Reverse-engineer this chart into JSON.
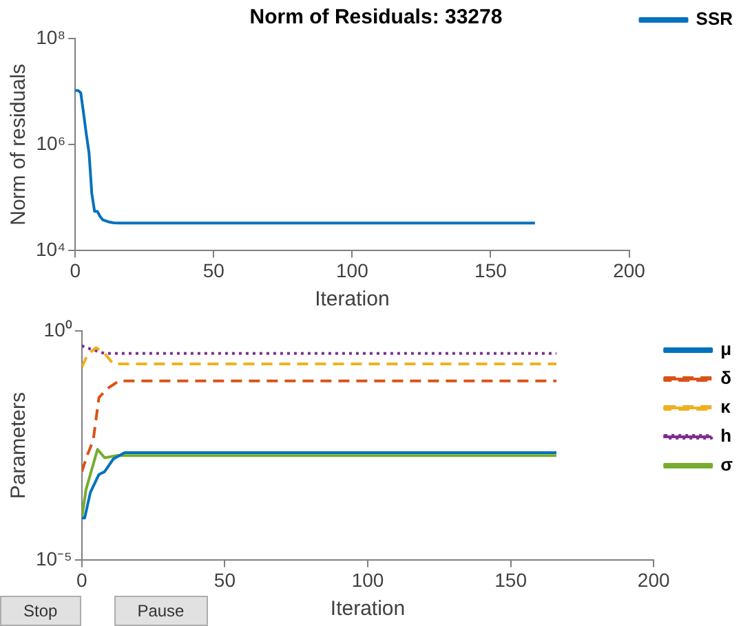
{
  "chart_data": [
    {
      "type": "line",
      "title": "Norm of Residuals: 33278",
      "xlabel": "Iteration",
      "ylabel": "Norm of residuals",
      "log": "y",
      "legend": "top right",
      "marker": "none",
      "xlim": [
        0,
        200
      ],
      "xticks": [
        0,
        50,
        100,
        150,
        200
      ],
      "ylim": [
        10000,
        100000000
      ],
      "yticks": [
        {
          "value": 10000,
          "label": "10⁴"
        },
        {
          "value": 1000000,
          "label": "10⁶"
        },
        {
          "value": 100000000,
          "label": "10⁸"
        }
      ],
      "series": [
        {
          "name": "SSR",
          "color": "#0072bd",
          "line_style": "solid",
          "x": [
            0,
            1,
            2,
            3,
            4,
            5,
            6,
            7,
            8,
            9,
            10,
            12,
            14,
            16,
            166
          ],
          "values": [
            10500000,
            10500000,
            9500000,
            4000000,
            1600000,
            700000,
            120000,
            55000,
            55000,
            44000,
            38000,
            35000,
            33500,
            33278,
            33278
          ]
        }
      ]
    },
    {
      "type": "line",
      "xlabel": "Iteration",
      "ylabel": "Parameters",
      "log": "y",
      "legend": "top right",
      "marker": "none",
      "xlim": [
        0,
        200
      ],
      "xticks": [
        0,
        50,
        100,
        150,
        200
      ],
      "ylim": [
        1e-05,
        1
      ],
      "yticks": [
        {
          "value": 1e-05,
          "label": "10⁻⁵"
        },
        {
          "value": 1,
          "label": "10⁰"
        }
      ],
      "annotations": [
        "Stop",
        "Pause"
      ],
      "series": [
        {
          "name": "μ",
          "color": "#0072bd",
          "line_style": "solid",
          "x": [
            0,
            1,
            3,
            6,
            8,
            11,
            15,
            166
          ],
          "values": [
            8.3e-05,
            8.3e-05,
            0.0003,
            0.00074,
            0.00085,
            0.0016,
            0.0022,
            0.0022
          ]
        },
        {
          "name": "δ",
          "color": "#d95319",
          "line_style": "dashed",
          "x": [
            0,
            2,
            4,
            6,
            9,
            13,
            166
          ],
          "values": [
            0.00085,
            0.002,
            0.0041,
            0.035,
            0.055,
            0.081,
            0.081
          ]
        },
        {
          "name": "κ",
          "color": "#edb120",
          "line_style": "dashed",
          "x": [
            0,
            2,
            5,
            8,
            11,
            166
          ],
          "values": [
            0.16,
            0.3,
            0.43,
            0.32,
            0.19,
            0.19
          ]
        },
        {
          "name": "h",
          "color": "#7e2f8e",
          "line_style": "dotted",
          "x": [
            0,
            3,
            8,
            166
          ],
          "values": [
            0.47,
            0.4,
            0.32,
            0.32
          ]
        },
        {
          "name": "σ",
          "color": "#77ac30",
          "line_style": "solid",
          "x": [
            0,
            1.5,
            5.5,
            8,
            12,
            166
          ],
          "values": [
            8.3e-05,
            0.00035,
            0.0026,
            0.0017,
            0.0019,
            0.0019
          ]
        }
      ]
    }
  ]
}
